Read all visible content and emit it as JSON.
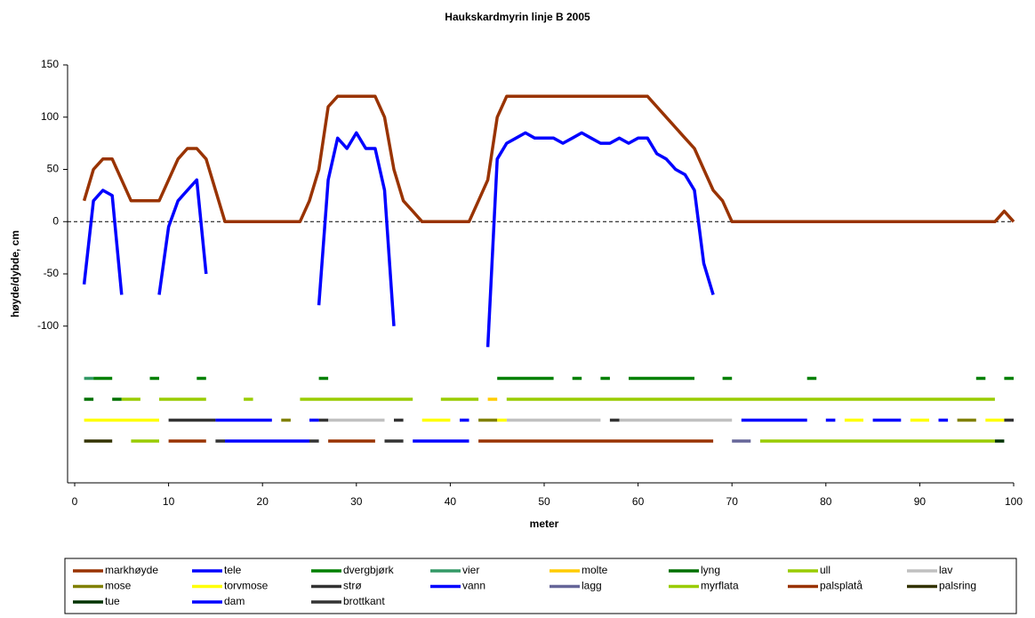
{
  "chart_data": {
    "type": "line",
    "title": "Haukskardmyrin linje B 2005",
    "x_label": "meter",
    "y_label": "høyde/dybde, cm",
    "xlim": [
      0,
      100
    ],
    "xticks": [
      0,
      10,
      20,
      30,
      40,
      50,
      60,
      70,
      80,
      90,
      100
    ],
    "ylim": [
      -250,
      150
    ],
    "yticks": [
      -100,
      -50,
      0,
      50,
      100,
      150
    ],
    "legend": "bottom",
    "series": [
      {
        "name": "markhøyde",
        "color": "#993300",
        "x": [
          1,
          2,
          3,
          4,
          5,
          6,
          7,
          8,
          9,
          10,
          11,
          12,
          13,
          14,
          15,
          16,
          17,
          18,
          19,
          20,
          21,
          22,
          23,
          24,
          25,
          26,
          27,
          28,
          29,
          30,
          31,
          32,
          33,
          34,
          35,
          36,
          37,
          38,
          39,
          40,
          41,
          42,
          43,
          44,
          45,
          46,
          47,
          48,
          49,
          50,
          51,
          52,
          53,
          54,
          55,
          56,
          57,
          58,
          59,
          60,
          61,
          62,
          63,
          64,
          65,
          66,
          67,
          68,
          69,
          70,
          71,
          72,
          73,
          74,
          75,
          76,
          77,
          78,
          79,
          80,
          81,
          82,
          83,
          84,
          85,
          86,
          87,
          88,
          89,
          90,
          91,
          92,
          93,
          94,
          95,
          96,
          97,
          98,
          99,
          100
        ],
        "values": [
          20,
          50,
          60,
          60,
          40,
          20,
          20,
          20,
          20,
          40,
          60,
          70,
          70,
          60,
          30,
          0,
          0,
          0,
          0,
          0,
          0,
          0,
          0,
          0,
          20,
          50,
          110,
          120,
          120,
          120,
          120,
          120,
          100,
          50,
          20,
          10,
          0,
          0,
          0,
          0,
          0,
          0,
          20,
          40,
          100,
          120,
          120,
          120,
          120,
          120,
          120,
          120,
          120,
          120,
          120,
          120,
          120,
          120,
          120,
          120,
          120,
          110,
          100,
          90,
          80,
          70,
          50,
          30,
          20,
          0,
          0,
          0,
          0,
          0,
          0,
          0,
          0,
          0,
          0,
          0,
          0,
          0,
          0,
          0,
          0,
          0,
          0,
          0,
          0,
          0,
          0,
          0,
          0,
          0,
          0,
          0,
          0,
          0,
          10,
          0
        ]
      },
      {
        "name": "tele",
        "color": "#0000ff",
        "x": [
          1,
          2,
          3,
          4,
          5,
          6,
          9,
          10,
          11,
          12,
          13,
          14,
          15,
          26,
          27,
          28,
          29,
          30,
          31,
          32,
          33,
          34,
          35,
          44,
          45,
          46,
          47,
          48,
          49,
          50,
          51,
          52,
          53,
          54,
          55,
          56,
          57,
          58,
          59,
          60,
          61,
          62,
          63,
          64,
          65,
          66,
          67,
          68
        ],
        "values": [
          -60,
          20,
          30,
          25,
          -70,
          null,
          -70,
          -5,
          20,
          30,
          40,
          -50,
          null,
          -80,
          40,
          80,
          70,
          85,
          70,
          70,
          30,
          -100,
          null,
          -120,
          60,
          75,
          80,
          85,
          80,
          80,
          80,
          75,
          80,
          85,
          80,
          75,
          75,
          80,
          75,
          80,
          80,
          65,
          60,
          50,
          45,
          30,
          -40,
          -70
        ]
      },
      {
        "name": "dvergbjørk",
        "color": "#008000",
        "x": [
          2,
          4,
          5,
          8,
          9,
          11,
          13,
          14,
          20,
          26,
          27,
          40,
          45,
          51,
          52,
          53,
          54,
          55,
          56,
          57,
          58,
          59,
          66,
          67,
          69,
          70,
          75,
          78,
          79,
          90,
          96,
          97,
          98,
          99,
          100
        ],
        "values": [
          -150,
          -150,
          null,
          -150,
          -150,
          null,
          -150,
          -150,
          null,
          -150,
          -150,
          null,
          -150,
          -150,
          null,
          -150,
          -150,
          null,
          -150,
          -150,
          null,
          -150,
          -150,
          null,
          -150,
          -150,
          null,
          -150,
          -150,
          null,
          -150,
          -150,
          null,
          -150,
          -150
        ]
      },
      {
        "name": "vier",
        "color": "#339966",
        "x": [
          1,
          2
        ],
        "values": [
          -150,
          -150
        ]
      },
      {
        "name": "molte",
        "color": "#ffcc00",
        "x": [
          44,
          45
        ],
        "values": [
          -170,
          -170
        ]
      },
      {
        "name": "lyng",
        "color": "#007000",
        "x": [
          1,
          2,
          3,
          4,
          5
        ],
        "values": [
          -170,
          -170,
          null,
          -170,
          -170
        ]
      },
      {
        "name": "ull",
        "color": "#99cc00",
        "x": [
          5,
          7,
          8,
          9,
          14,
          16,
          18,
          19,
          21,
          24,
          36,
          37,
          39,
          43,
          44,
          46,
          98
        ],
        "values": [
          -170,
          -170,
          null,
          -170,
          -170,
          null,
          -170,
          -170,
          null,
          -170,
          -170,
          null,
          -170,
          -170,
          null,
          -170,
          -170
        ]
      },
      {
        "name": "lav",
        "color": "#c0c0c0",
        "x": [
          27,
          33,
          40,
          46,
          56,
          57,
          58,
          70
        ],
        "values": [
          -190,
          -190,
          null,
          -190,
          -190,
          null,
          -190,
          -190
        ]
      },
      {
        "name": "mose",
        "color": "#808000",
        "x": [
          22,
          23,
          30,
          43,
          45,
          60,
          94,
          96
        ],
        "values": [
          -190,
          -190,
          null,
          -190,
          -190,
          null,
          -190,
          -190
        ]
      },
      {
        "name": "torvmose",
        "color": "#ffff00",
        "x": [
          1,
          9,
          20,
          37,
          40,
          42,
          45,
          46,
          60,
          82,
          84,
          86,
          89,
          91,
          95,
          97,
          99
        ],
        "values": [
          -190,
          -190,
          null,
          -190,
          -190,
          null,
          -190,
          -190,
          null,
          -190,
          -190,
          null,
          -190,
          -190,
          null,
          -190,
          -190
        ]
      },
      {
        "name": "strø",
        "color": "#333333",
        "x": [
          10,
          15,
          20,
          26,
          27,
          30,
          34,
          35,
          50,
          57,
          58,
          98,
          99,
          100
        ],
        "values": [
          -190,
          -190,
          null,
          -190,
          -190,
          null,
          -190,
          -190,
          null,
          -190,
          -190,
          null,
          -190,
          -190
        ]
      },
      {
        "name": "vann",
        "color": "#0000ff",
        "x": [
          15,
          21,
          23,
          25,
          26,
          30,
          41,
          42,
          50,
          71,
          78,
          79,
          80,
          81,
          83,
          85,
          88,
          90,
          92,
          93
        ],
        "values": [
          -190,
          -190,
          null,
          -190,
          -190,
          null,
          -190,
          -190,
          null,
          -190,
          -190,
          null,
          -190,
          -190,
          null,
          -190,
          -190,
          null,
          -190,
          -190
        ]
      },
      {
        "name": "lagg",
        "color": "#666699",
        "x": [
          70,
          72
        ],
        "values": [
          -210,
          -210
        ]
      },
      {
        "name": "myrflata",
        "color": "#99cc00",
        "x": [
          6,
          9,
          40,
          73,
          98
        ],
        "values": [
          -210,
          -210,
          null,
          -210,
          -210
        ]
      },
      {
        "name": "palsplatå",
        "color": "#993300",
        "x": [
          10,
          14,
          20,
          27,
          32,
          40,
          43,
          68
        ],
        "values": [
          -210,
          -210,
          null,
          -210,
          -210,
          null,
          -210,
          -210
        ]
      },
      {
        "name": "palsring",
        "color": "#333300",
        "x": [
          1,
          4
        ],
        "values": [
          -210,
          -210
        ]
      },
      {
        "name": "tue",
        "color": "#003300",
        "x": [
          98,
          99
        ],
        "values": [
          -210,
          -210
        ]
      },
      {
        "name": "dam",
        "color": "#0000ff",
        "x": [
          16,
          25,
          30,
          36,
          42
        ],
        "values": [
          -210,
          -210,
          null,
          -210,
          -210
        ]
      },
      {
        "name": "brottkant",
        "color": "#333333",
        "x": [
          15,
          16,
          20,
          25,
          26,
          30,
          33,
          35
        ],
        "values": [
          -210,
          -210,
          null,
          -210,
          -210,
          null,
          -210,
          -210
        ]
      }
    ]
  }
}
